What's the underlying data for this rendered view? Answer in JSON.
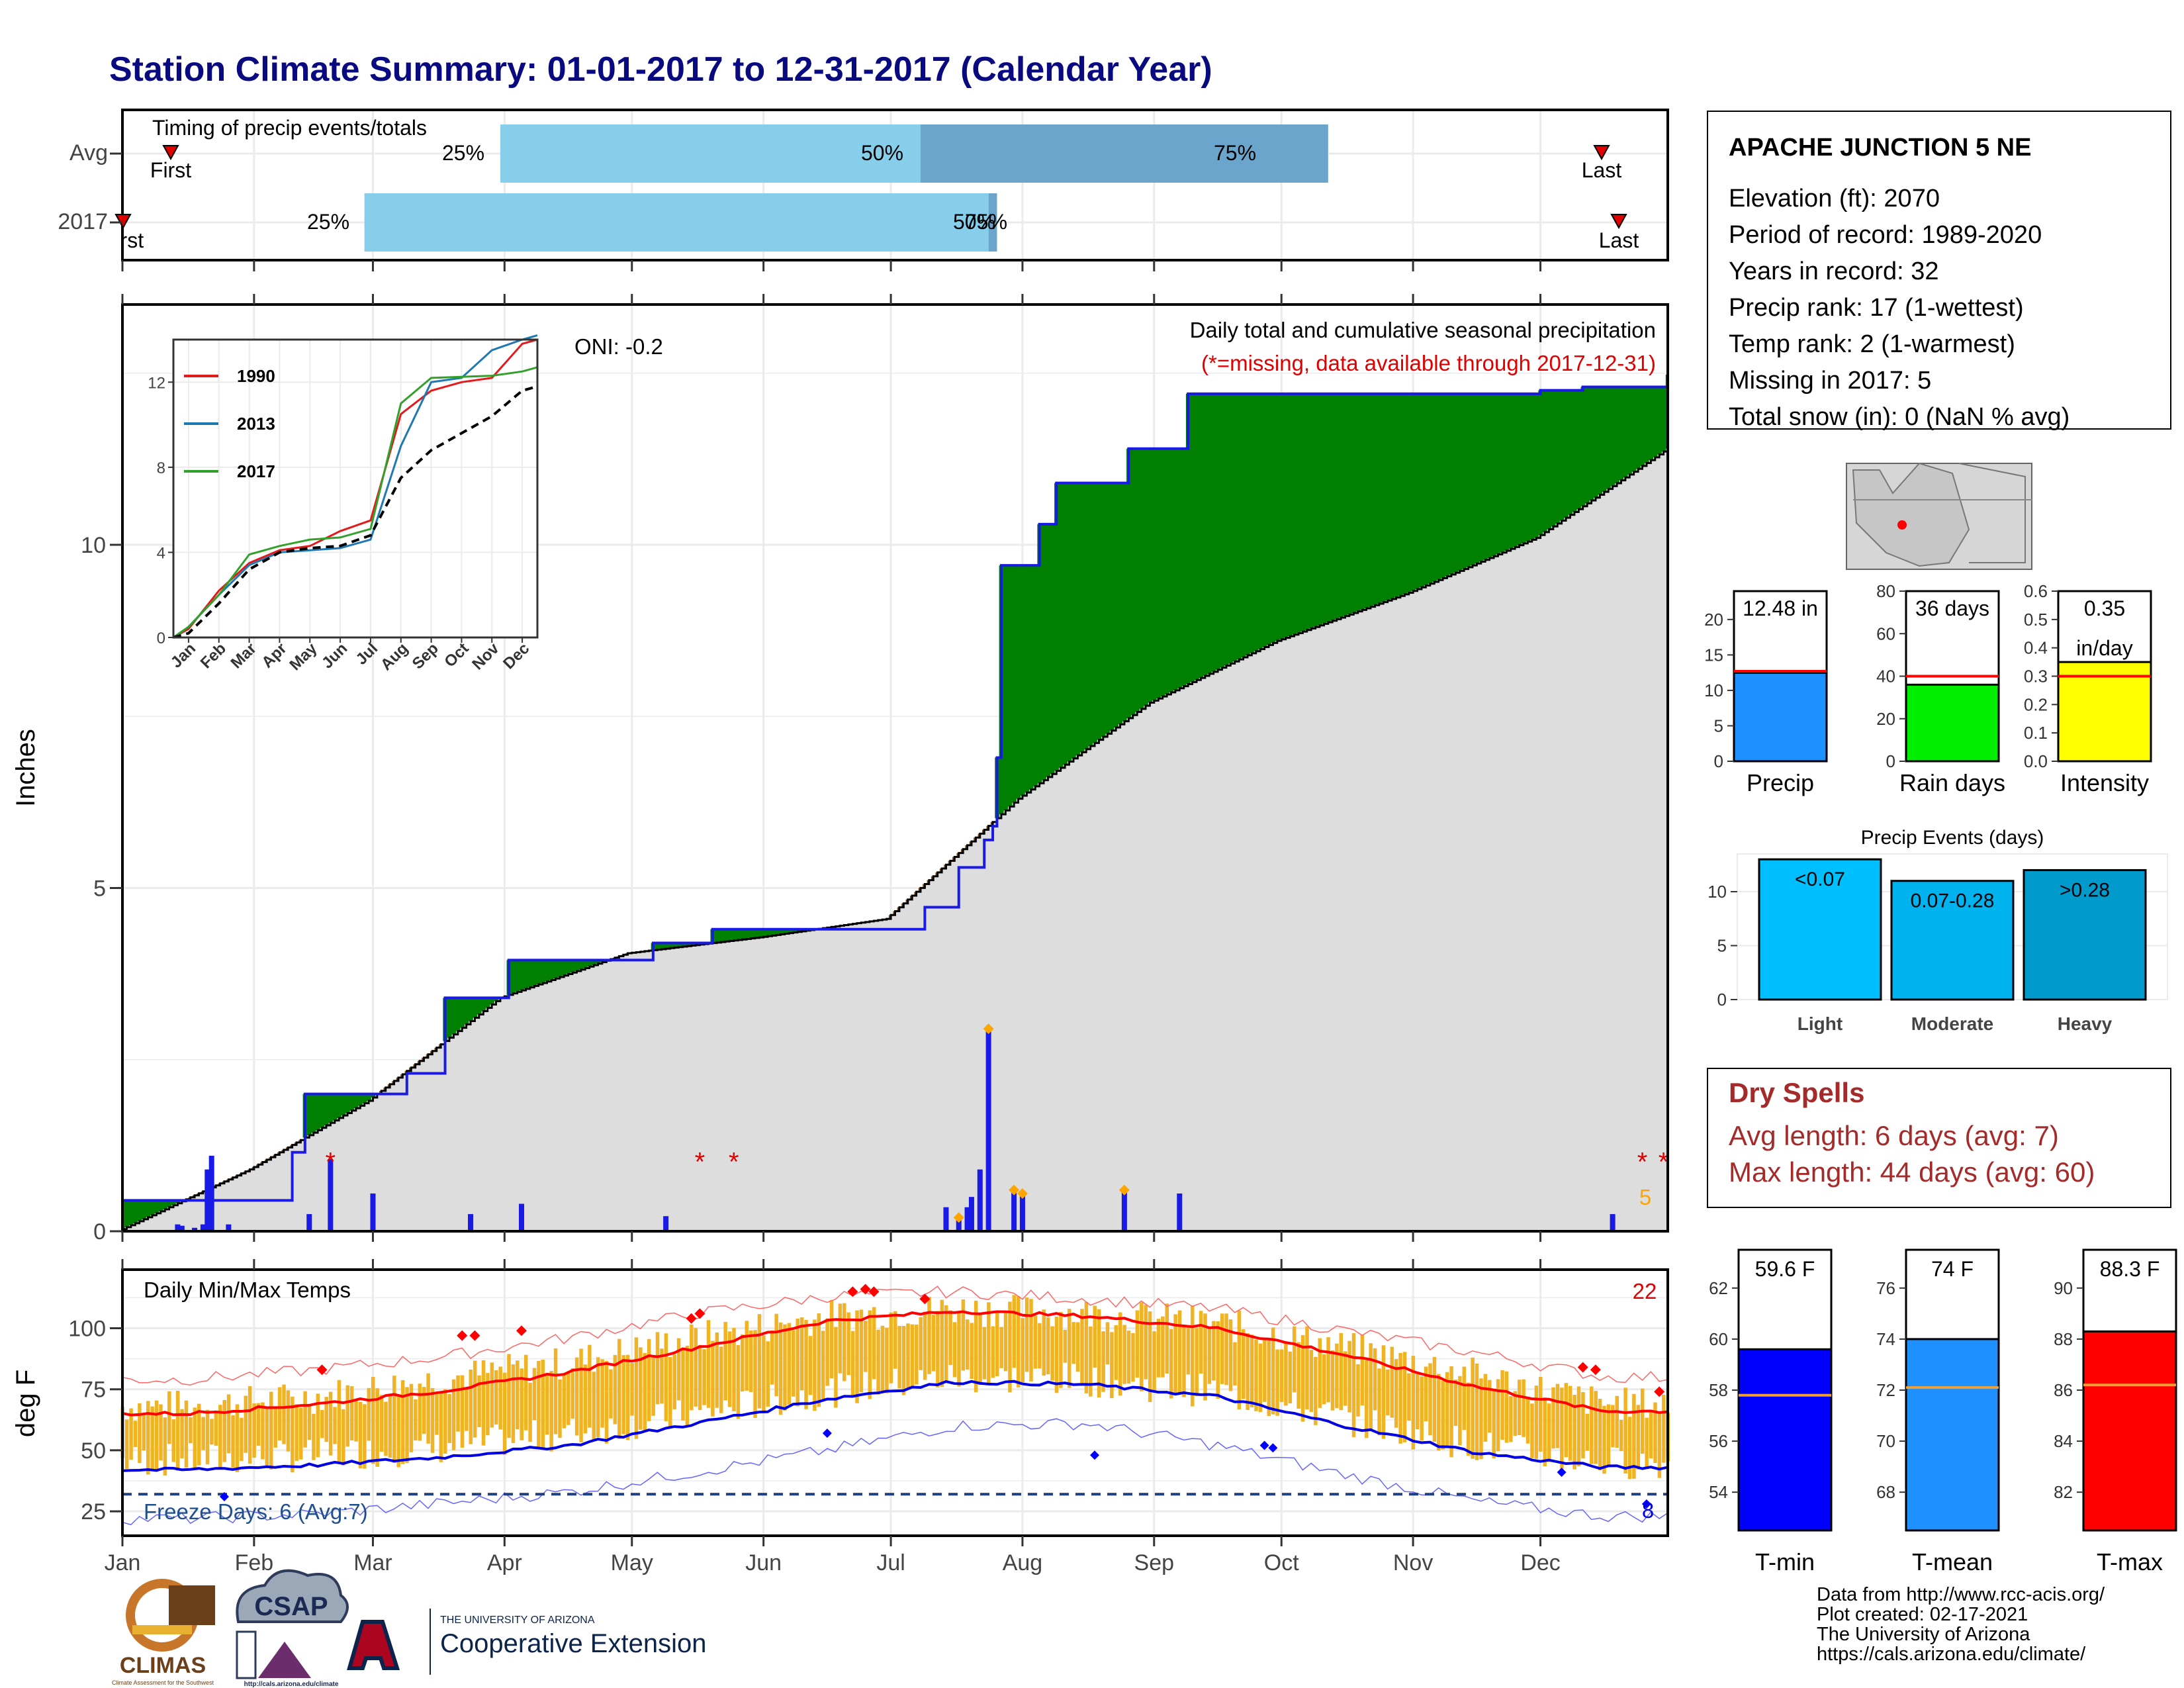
{
  "title": "Station Climate Summary: 01-01-2017 to 12-31-2017 (Calendar Year)",
  "colors": {
    "title": "#0a0a80",
    "excess": "#008000",
    "deficit": "#7f4f0a",
    "normal_fill": "#dddddd",
    "observed_line": "#1a1ae6",
    "daily_bar": "#1a1ae6",
    "light_blue": "#87ceeb",
    "mid_blue": "#6ba5cc",
    "temp_bar": "#f0b323",
    "tmax_avg": "#ff0000",
    "tmin_avg": "#0000e0",
    "dry_spell": "#a52a2a"
  },
  "timing": {
    "title": "Timing of precip events/totals",
    "rows": [
      {
        "label": "Avg",
        "first_label": "First",
        "last_label": "Last",
        "p25_label": "25%",
        "p50_label": "50%",
        "p75_label": "75%"
      },
      {
        "label": "2017",
        "first_label": "First",
        "last_label": "Last",
        "p25_label": "25%",
        "p50_label": "50%",
        "p75_label": "75%"
      }
    ]
  },
  "main_chart": {
    "ylabel": "Inches",
    "header_line1": "Daily total and cumulative seasonal precipitation",
    "header_line2": "(*=missing, data available through 2017-12-31)",
    "oni_label": "ONI: -0.2",
    "count_label": "5",
    "yticks": [
      "0",
      "5",
      "10"
    ]
  },
  "inset": {
    "yticks": [
      "0",
      "4",
      "8",
      "12"
    ],
    "legend": [
      {
        "name": "1990",
        "color": "#e31a1c"
      },
      {
        "name": "2013",
        "color": "#1f78b4"
      },
      {
        "name": "2017",
        "color": "#33a02c"
      }
    ]
  },
  "temp_chart": {
    "ylabel": "deg F",
    "title": "Daily Min/Max Temps",
    "count_label": "22",
    "freeze_label": "Freeze Days: 6 (Avg:7)",
    "freeze_count": "8",
    "yticks": [
      "25",
      "50",
      "75",
      "100"
    ]
  },
  "months": [
    "Jan",
    "Feb",
    "Mar",
    "Apr",
    "May",
    "Jun",
    "Jul",
    "Aug",
    "Sep",
    "Oct",
    "Nov",
    "Dec"
  ],
  "station": {
    "name": "APACHE JUNCTION 5 NE",
    "lines": [
      "Elevation (ft): 2070",
      "Period of record: 1989-2020",
      "Years in record: 32",
      "Precip rank: 17 (1-wettest)",
      "Temp rank: 2 (1-warmest)",
      "Missing in 2017: 5",
      "Total snow (in): 0 (NaN % avg)"
    ]
  },
  "precip_summary": [
    {
      "label": "Precip",
      "value_label": "12.48 in",
      "value": 12.48,
      "avg": 12.7,
      "ymax": 24,
      "ticks": [
        "0",
        "5",
        "10",
        "15",
        "20"
      ],
      "color": "#1e90ff"
    },
    {
      "label": "Rain days",
      "value_label": "36 days",
      "value": 36,
      "avg": 40,
      "ymax": 80,
      "ticks": [
        "0",
        "20",
        "40",
        "60",
        "80"
      ],
      "color": "#00ee00"
    },
    {
      "label": "Intensity",
      "value_label": "0.35",
      "value_label2": "in/day",
      "value": 0.35,
      "avg": 0.3,
      "ymax": 0.6,
      "ticks": [
        "0.0",
        "0.1",
        "0.2",
        "0.3",
        "0.4",
        "0.5",
        "0.6"
      ],
      "color": "#ffff00"
    }
  ],
  "precip_events": {
    "title": "Precip Events (days)",
    "ticks": [
      "0",
      "5",
      "10"
    ],
    "bars": [
      {
        "category": "Light",
        "label": "<0.07",
        "value": 13,
        "color": "#00bfff"
      },
      {
        "category": "Moderate",
        "label": "0.07-0.28",
        "value": 11,
        "color": "#00b2ee"
      },
      {
        "category": "Heavy",
        "label": ">0.28",
        "value": 12,
        "color": "#009acd"
      }
    ]
  },
  "dry_spells": {
    "title": "Dry Spells",
    "line1": "Avg length: 6 days (avg: 7)",
    "line2": "Max length: 44 days (avg: 60)"
  },
  "temp_summary": [
    {
      "label": "T-min",
      "value_label": "59.6 F",
      "value": 59.6,
      "avg": 57.8,
      "ymin": 52.5,
      "ymax": 63.5,
      "ticks": [
        54,
        56,
        58,
        60,
        62
      ],
      "color": "#0000ff"
    },
    {
      "label": "T-mean",
      "value_label": "74 F",
      "value": 74,
      "avg": 72.1,
      "ymin": 66.5,
      "ymax": 77.5,
      "ticks": [
        68,
        70,
        72,
        74,
        76
      ],
      "color": "#1e90ff"
    },
    {
      "label": "T-max",
      "value_label": "88.3 F",
      "value": 88.3,
      "avg": 86.2,
      "ymin": 80.5,
      "ymax": 91.5,
      "ticks": [
        82,
        84,
        86,
        88,
        90
      ],
      "color": "#ff0000"
    }
  ],
  "footer": {
    "lines": [
      "Data from http://www.rcc-acis.org/",
      "Plot created: 02-17-2021",
      "The University of Arizona",
      "https://cals.arizona.edu/climate/"
    ],
    "logo_climas": "CLIMAS",
    "logo_climas_sub": "Climate Assessment for the Southwest",
    "logo_csap": "CSAP",
    "logo_csap_sub": "http://cals.arizona.edu/climate",
    "ua_line1": "THE UNIVERSITY OF ARIZONA",
    "ua_line2": "Cooperative Extension"
  },
  "chart_data": [
    {
      "type": "area",
      "title": "Daily total and cumulative seasonal precipitation",
      "ylabel": "Inches",
      "ylim": [
        0,
        13.5
      ],
      "x_unit": "day of year",
      "observed_cumulative_steps": [
        {
          "day": 1,
          "value": 0.45
        },
        {
          "day": 41,
          "value": 1.15
        },
        {
          "day": 44,
          "value": 2.0
        },
        {
          "day": 68,
          "value": 2.3
        },
        {
          "day": 77,
          "value": 3.4
        },
        {
          "day": 92,
          "value": 3.95
        },
        {
          "day": 126,
          "value": 4.2
        },
        {
          "day": 140,
          "value": 4.4
        },
        {
          "day": 190,
          "value": 4.72
        },
        {
          "day": 198,
          "value": 5.3
        },
        {
          "day": 204,
          "value": 5.7
        },
        {
          "day": 206,
          "value": 5.9
        },
        {
          "day": 207,
          "value": 6.9
        },
        {
          "day": 208,
          "value": 9.7
        },
        {
          "day": 217,
          "value": 10.3
        },
        {
          "day": 221,
          "value": 10.9
        },
        {
          "day": 238,
          "value": 11.4
        },
        {
          "day": 252,
          "value": 12.2
        },
        {
          "day": 335,
          "value": 12.25
        },
        {
          "day": 345,
          "value": 12.3
        },
        {
          "day": 365,
          "value": 12.48
        }
      ],
      "normal_cumulative": [
        {
          "day": 1,
          "value": 0.03
        },
        {
          "day": 31,
          "value": 0.9
        },
        {
          "day": 59,
          "value": 1.9
        },
        {
          "day": 90,
          "value": 3.4
        },
        {
          "day": 120,
          "value": 4.05
        },
        {
          "day": 151,
          "value": 4.28
        },
        {
          "day": 181,
          "value": 4.55
        },
        {
          "day": 212,
          "value": 6.3
        },
        {
          "day": 243,
          "value": 7.7
        },
        {
          "day": 273,
          "value": 8.6
        },
        {
          "day": 304,
          "value": 9.3
        },
        {
          "day": 334,
          "value": 10.1
        },
        {
          "day": 365,
          "value": 11.4
        }
      ],
      "daily_precip": [
        {
          "day": 14,
          "value": 0.1
        },
        {
          "day": 15,
          "value": 0.08
        },
        {
          "day": 18,
          "value": 0.05
        },
        {
          "day": 20,
          "value": 0.1
        },
        {
          "day": 21,
          "value": 0.9
        },
        {
          "day": 22,
          "value": 1.1
        },
        {
          "day": 26,
          "value": 0.1
        },
        {
          "day": 45,
          "value": 0.25
        },
        {
          "day": 50,
          "value": 1.05
        },
        {
          "day": 60,
          "value": 0.55
        },
        {
          "day": 83,
          "value": 0.25
        },
        {
          "day": 95,
          "value": 0.4
        },
        {
          "day": 129,
          "value": 0.22
        },
        {
          "day": 195,
          "value": 0.35
        },
        {
          "day": 198,
          "value": 0.2
        },
        {
          "day": 200,
          "value": 0.35
        },
        {
          "day": 201,
          "value": 0.5
        },
        {
          "day": 203,
          "value": 0.9
        },
        {
          "day": 205,
          "value": 2.95
        },
        {
          "day": 211,
          "value": 0.6
        },
        {
          "day": 213,
          "value": 0.55
        },
        {
          "day": 237,
          "value": 0.6
        },
        {
          "day": 250,
          "value": 0.55
        },
        {
          "day": 352,
          "value": 0.25
        }
      ],
      "orange_markers_days": [
        198,
        205,
        211,
        213,
        237
      ],
      "missing_days": [
        50,
        137,
        145,
        359,
        364
      ]
    },
    {
      "type": "line",
      "title": "Cumulative precipitation comparison (inset)",
      "x": [
        "Jan",
        "Feb",
        "Mar",
        "Apr",
        "May",
        "Jun",
        "Jul",
        "Aug",
        "Sep",
        "Oct",
        "Nov",
        "Dec"
      ],
      "ylim": [
        0,
        14
      ],
      "series": [
        {
          "name": "1990",
          "values": [
            0.4,
            2.2,
            3.5,
            4.1,
            4.3,
            5.0,
            5.5,
            10.5,
            11.6,
            12.0,
            12.2,
            13.8
          ]
        },
        {
          "name": "2013",
          "values": [
            0.5,
            2.0,
            3.4,
            4.0,
            4.1,
            4.2,
            4.6,
            9.0,
            12.0,
            12.2,
            13.5,
            14.0
          ]
        },
        {
          "name": "2017",
          "values": [
            0.5,
            2.0,
            3.9,
            4.3,
            4.6,
            4.7,
            5.1,
            11.0,
            12.2,
            12.25,
            12.3,
            12.5
          ]
        },
        {
          "values": [
            0.2,
            1.6,
            3.2,
            4.0,
            4.2,
            4.3,
            4.8,
            7.5,
            8.8,
            9.6,
            10.4,
            11.6
          ]
        }
      ]
    },
    {
      "type": "line",
      "title": "Daily Min/Max Temps",
      "ylabel": "deg F",
      "ylim": [
        15,
        124
      ],
      "x": [
        "Jan",
        "Feb",
        "Mar",
        "Apr",
        "May",
        "Jun",
        "Jul",
        "Aug",
        "Sep",
        "Oct",
        "Nov",
        "Dec"
      ],
      "series": [
        {
          "values": [
            65,
            69,
            74,
            82,
            92,
            103,
            107,
            105,
            100,
            89,
            76,
            66
          ]
        },
        {
          "values": [
            42,
            44,
            47,
            52,
            61,
            71,
            78,
            77,
            72,
            60,
            49,
            43
          ]
        },
        {
          "values": [
            79,
            83,
            88,
            96,
            106,
            113,
            115,
            112,
            108,
            99,
            90,
            80
          ]
        },
        {
          "values": [
            22,
            24,
            28,
            33,
            41,
            50,
            60,
            61,
            52,
            40,
            29,
            23
          ]
        },
        {
          "values": [
            68,
            72,
            79,
            86,
            96,
            105,
            108,
            106,
            102,
            92,
            81,
            69
          ]
        },
        {
          "values": [
            46,
            48,
            51,
            57,
            65,
            74,
            80,
            79,
            74,
            63,
            52,
            45
          ]
        }
      ],
      "freeze_line": 32
    }
  ]
}
